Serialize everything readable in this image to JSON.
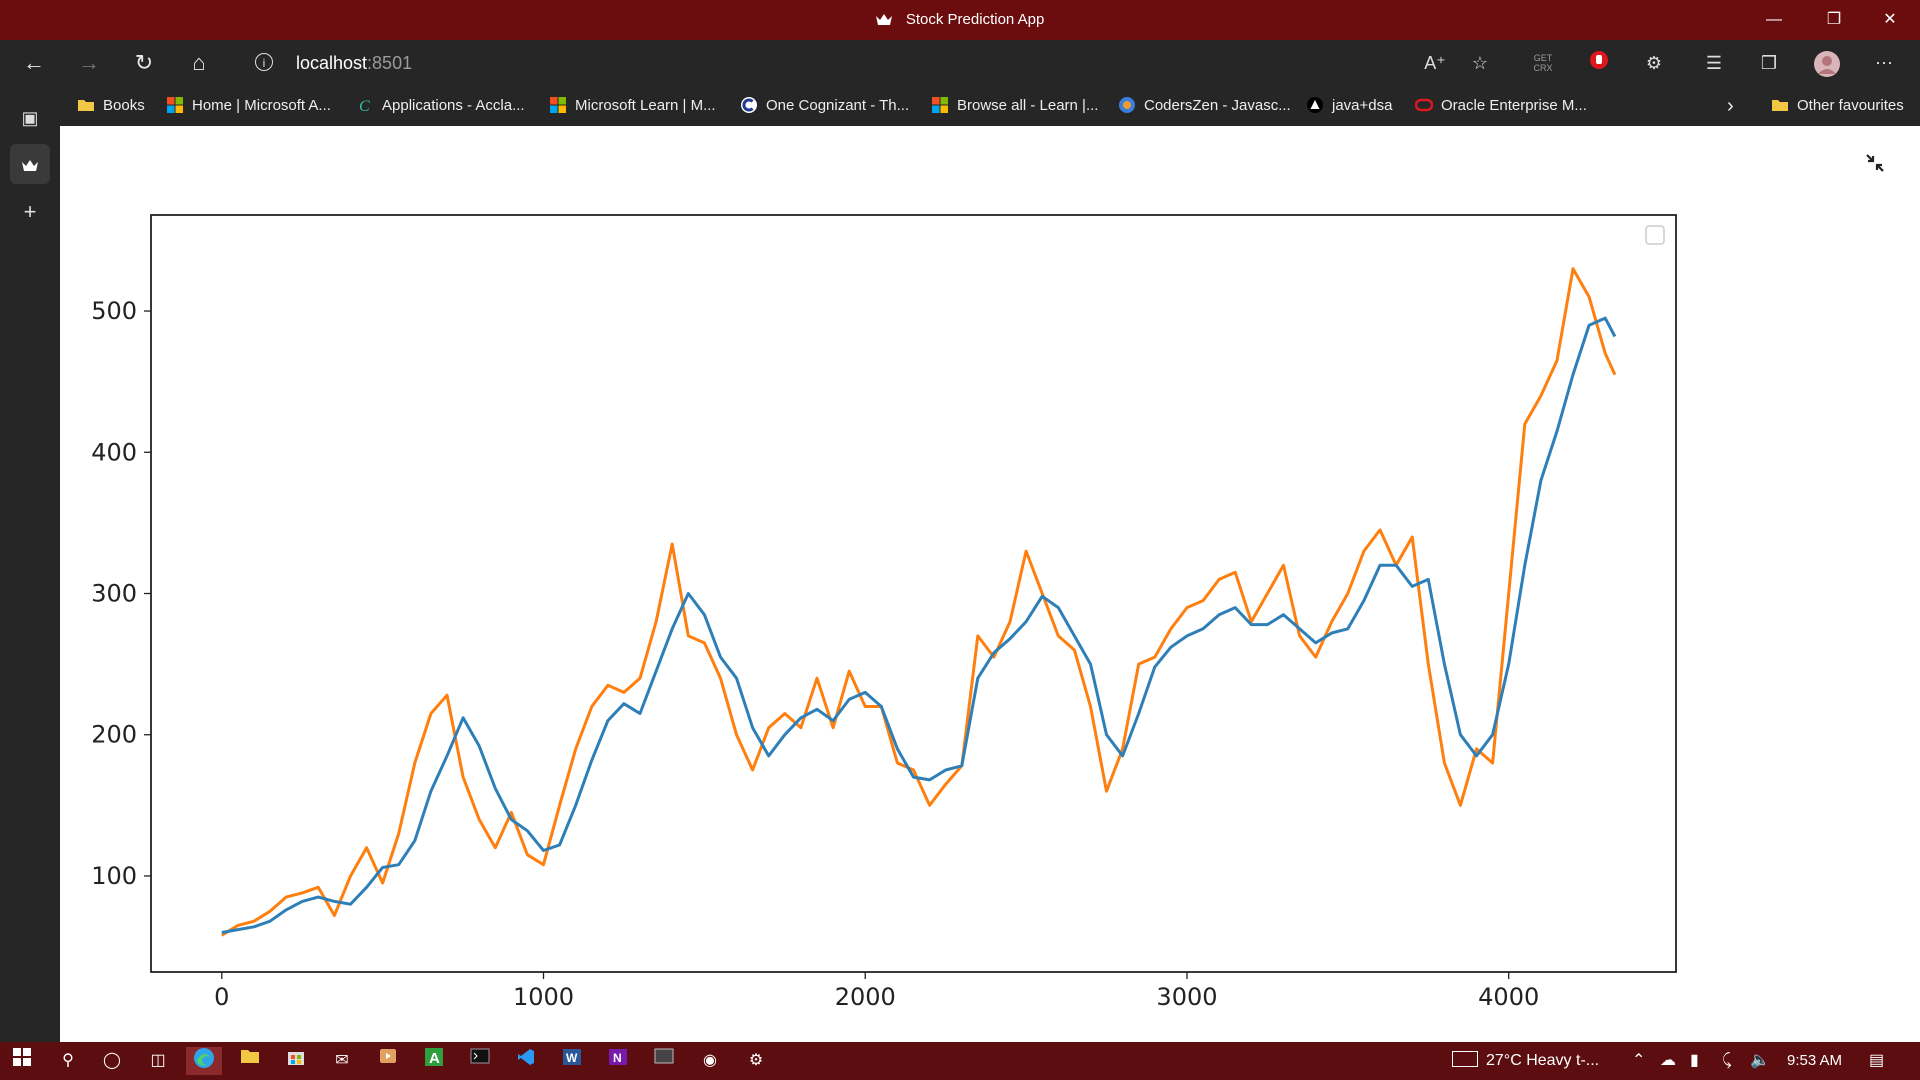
{
  "window": {
    "title": "Stock Prediction App"
  },
  "address_bar": {
    "host": "localhost",
    "port": ":8501"
  },
  "bookmarks": [
    {
      "label": "Books",
      "icon": "folder-icon"
    },
    {
      "label": "Home | Microsoft A...",
      "icon": "microsoft-icon"
    },
    {
      "label": "Applications - Accla...",
      "icon": "c-logo-icon"
    },
    {
      "label": "Microsoft Learn | M...",
      "icon": "microsoft-icon"
    },
    {
      "label": "One Cognizant - Th...",
      "icon": "cognizant-icon"
    },
    {
      "label": "Browse all - Learn |...",
      "icon": "microsoft-icon"
    },
    {
      "label": "CodersZen - Javasc...",
      "icon": "coderszen-icon"
    },
    {
      "label": "java+dsa",
      "icon": "triangle-icon"
    },
    {
      "label": "Oracle Enterprise M...",
      "icon": "oracle-icon"
    }
  ],
  "other_favourites": "Other favourites",
  "extension_text": "GET CRX",
  "taskbar": {
    "weather": "27°C  Heavy t-...",
    "time": "9:53 AM"
  },
  "colors": {
    "titlebar": "#6b0c0f",
    "taskbar": "#5c0d10",
    "chrome": "#262626",
    "series_blue": "#2e7fb8",
    "series_orange": "#ff7f0e"
  },
  "chart_data": {
    "type": "line",
    "xlim": [
      -220,
      4520
    ],
    "ylim": [
      32,
      568
    ],
    "x_ticks": [
      0,
      1000,
      2000,
      3000,
      4000
    ],
    "y_ticks": [
      100,
      200,
      300,
      400,
      500
    ],
    "x_tick_labels": [
      "0",
      "1000",
      "2000",
      "3000",
      "4000"
    ],
    "y_tick_labels": [
      "100",
      "200",
      "300",
      "400",
      "500"
    ],
    "legend": "top-right (empty box)",
    "grid": false,
    "series": [
      {
        "color": "#ff7f0e",
        "x": [
          0,
          50,
          100,
          150,
          200,
          250,
          300,
          350,
          400,
          450,
          500,
          550,
          600,
          650,
          700,
          750,
          800,
          850,
          900,
          950,
          1000,
          1050,
          1100,
          1150,
          1200,
          1250,
          1300,
          1350,
          1400,
          1450,
          1500,
          1550,
          1600,
          1650,
          1700,
          1750,
          1800,
          1850,
          1900,
          1950,
          2000,
          2050,
          2100,
          2150,
          2200,
          2250,
          2300,
          2350,
          2400,
          2450,
          2500,
          2550,
          2600,
          2650,
          2700,
          2750,
          2800,
          2850,
          2900,
          2950,
          3000,
          3050,
          3100,
          3150,
          3200,
          3250,
          3300,
          3350,
          3400,
          3450,
          3500,
          3550,
          3600,
          3650,
          3700,
          3750,
          3800,
          3850,
          3900,
          3950,
          4000,
          4050,
          4100,
          4150,
          4200,
          4250,
          4300,
          4330
        ],
        "y": [
          58,
          65,
          68,
          75,
          85,
          88,
          92,
          72,
          100,
          120,
          95,
          130,
          180,
          215,
          228,
          170,
          140,
          120,
          145,
          115,
          108,
          150,
          190,
          220,
          235,
          230,
          240,
          280,
          335,
          270,
          265,
          240,
          200,
          175,
          205,
          215,
          205,
          240,
          205,
          245,
          220,
          220,
          180,
          175,
          150,
          165,
          178,
          270,
          255,
          280,
          330,
          300,
          270,
          260,
          220,
          160,
          190,
          250,
          255,
          275,
          290,
          295,
          310,
          315,
          280,
          300,
          320,
          270,
          255,
          280,
          300,
          330,
          345,
          320,
          340,
          250,
          180,
          150,
          190,
          180,
          300,
          420,
          440,
          465,
          530,
          510,
          470,
          455
        ]
      },
      {
        "color": "#2e7fb8",
        "x": [
          0,
          50,
          100,
          150,
          200,
          250,
          300,
          350,
          400,
          450,
          500,
          550,
          600,
          650,
          700,
          750,
          800,
          850,
          900,
          950,
          1000,
          1050,
          1100,
          1150,
          1200,
          1250,
          1300,
          1350,
          1400,
          1450,
          1500,
          1550,
          1600,
          1650,
          1700,
          1750,
          1800,
          1850,
          1900,
          1950,
          2000,
          2050,
          2100,
          2150,
          2200,
          2250,
          2300,
          2350,
          2400,
          2450,
          2500,
          2550,
          2600,
          2650,
          2700,
          2750,
          2800,
          2850,
          2900,
          2950,
          3000,
          3050,
          3100,
          3150,
          3200,
          3250,
          3300,
          3350,
          3400,
          3450,
          3500,
          3550,
          3600,
          3650,
          3700,
          3750,
          3800,
          3850,
          3900,
          3950,
          4000,
          4050,
          4100,
          4150,
          4200,
          4250,
          4300,
          4330
        ],
        "y": [
          60,
          62,
          64,
          68,
          76,
          82,
          85,
          82,
          80,
          92,
          106,
          108,
          125,
          160,
          185,
          212,
          192,
          162,
          140,
          132,
          118,
          122,
          150,
          182,
          210,
          222,
          215,
          245,
          275,
          300,
          285,
          255,
          240,
          205,
          185,
          200,
          212,
          218,
          210,
          225,
          230,
          220,
          190,
          170,
          168,
          175,
          178,
          240,
          258,
          268,
          280,
          298,
          290,
          270,
          250,
          200,
          185,
          215,
          248,
          262,
          270,
          275,
          285,
          290,
          278,
          278,
          285,
          275,
          265,
          272,
          275,
          295,
          320,
          320,
          305,
          310,
          250,
          200,
          185,
          200,
          250,
          320,
          380,
          415,
          455,
          490,
          495,
          482
        ]
      }
    ]
  }
}
